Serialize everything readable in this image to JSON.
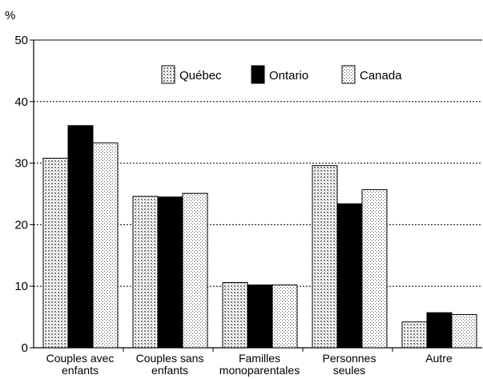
{
  "chart_data": {
    "type": "bar",
    "y_unit": "%",
    "categories": [
      [
        "Couples avec",
        "enfants"
      ],
      [
        "Couples sans",
        "enfants"
      ],
      [
        "Familles",
        "monoparentales"
      ],
      [
        "Personnes",
        "seules"
      ],
      [
        "Autre"
      ]
    ],
    "series": [
      {
        "name": "Québec",
        "values": [
          30.8,
          24.6,
          10.6,
          29.6,
          4.2
        ]
      },
      {
        "name": "Ontario",
        "values": [
          36.1,
          24.5,
          10.2,
          23.4,
          5.7
        ]
      },
      {
        "name": "Canada",
        "values": [
          33.3,
          25.1,
          10.2,
          25.7,
          5.4
        ]
      }
    ],
    "ylim": [
      0,
      50
    ],
    "yticks": [
      0,
      10,
      20,
      30,
      40,
      50
    ],
    "grid": true,
    "legend_position": "top-right"
  }
}
